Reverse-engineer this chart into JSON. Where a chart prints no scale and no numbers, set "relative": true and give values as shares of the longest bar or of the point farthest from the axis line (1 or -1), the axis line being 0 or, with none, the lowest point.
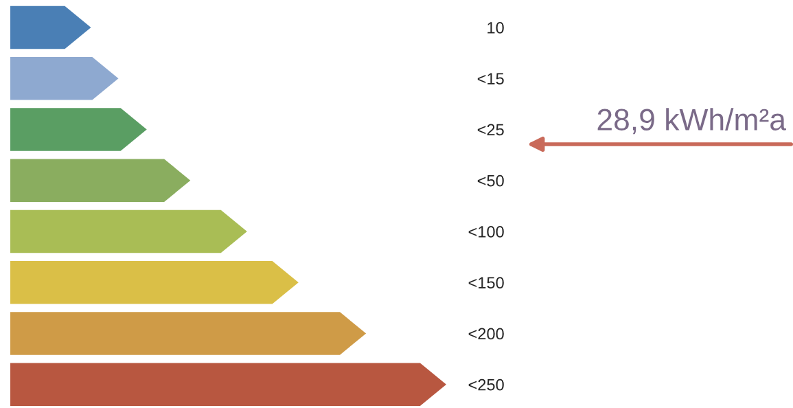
{
  "chart_data": {
    "type": "bar",
    "orientation": "horizontal",
    "relative": true,
    "categories": [
      "10",
      "<15",
      "<25",
      "<50",
      "<100",
      "<150",
      "<200",
      "<250"
    ],
    "values": [
      0.185,
      0.248,
      0.313,
      0.413,
      0.543,
      0.661,
      0.816,
      1
    ],
    "colors": [
      "#4a7fb5",
      "#8ea9d0",
      "#5a9e63",
      "#8aad5f",
      "#a9bd55",
      "#dabf47",
      "#cf9b47",
      "#b85740"
    ],
    "annotations": [
      "28,9 kWh/m²a"
    ]
  }
}
